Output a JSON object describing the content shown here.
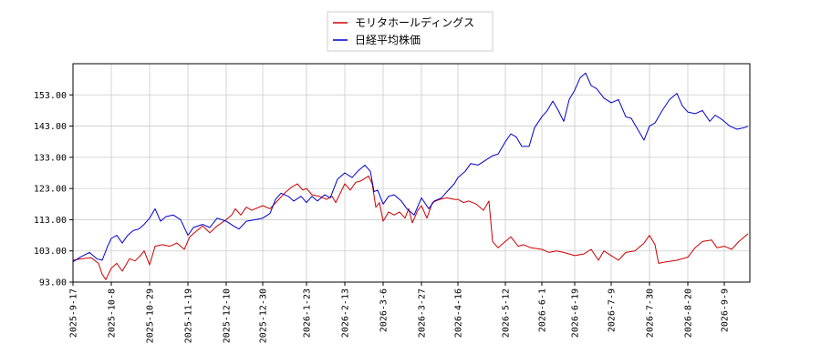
{
  "chart_data": {
    "type": "line",
    "title": "",
    "xlabel": "",
    "ylabel": "",
    "grid": true,
    "legend_placement": "top-center",
    "ylim": [
      93,
      163
    ],
    "y_ticks": [
      93,
      103,
      113,
      123,
      133,
      143,
      153
    ],
    "y_tick_labels": [
      "93.00",
      "103.00",
      "113.00",
      "123.00",
      "133.00",
      "143.00",
      "153.00"
    ],
    "xlim": [
      "2025-09-17",
      "2026-09-23"
    ],
    "x_tick_labels": [
      "2025-9-17",
      "2025-10-8",
      "2025-10-29",
      "2025-11-19",
      "2025-12-10",
      "2025-12-30",
      "2026-1-23",
      "2026-2-13",
      "2026-3-6",
      "2026-3-27",
      "2026-4-16",
      "2026-5-12",
      "2026-6-1",
      "2026-6-19",
      "2026-7-9",
      "2026-7-30",
      "2026-8-20",
      "2026-9-9"
    ],
    "series": [
      {
        "name": "モリタホールディングス",
        "color": "#cc0000",
        "points": [
          [
            "2025-09-17",
            100.0
          ],
          [
            "2025-09-22",
            100.5
          ],
          [
            "2025-09-27",
            100.8
          ],
          [
            "2025-10-01",
            99.0
          ],
          [
            "2025-10-03",
            95.5
          ],
          [
            "2025-10-05",
            93.8
          ],
          [
            "2025-10-08",
            97.5
          ],
          [
            "2025-10-11",
            99.0
          ],
          [
            "2025-10-14",
            96.5
          ],
          [
            "2025-10-18",
            100.5
          ],
          [
            "2025-10-21",
            99.8
          ],
          [
            "2025-10-24",
            101.5
          ],
          [
            "2025-10-26",
            103.0
          ],
          [
            "2025-10-29",
            98.5
          ],
          [
            "2025-11-01",
            104.5
          ],
          [
            "2025-11-05",
            105.0
          ],
          [
            "2025-11-09",
            104.5
          ],
          [
            "2025-11-13",
            105.5
          ],
          [
            "2025-11-17",
            103.5
          ],
          [
            "2025-11-20",
            107.5
          ],
          [
            "2025-11-23",
            109.0
          ],
          [
            "2025-11-27",
            111.0
          ],
          [
            "2025-12-01",
            108.8
          ],
          [
            "2025-12-05",
            111.0
          ],
          [
            "2025-12-10",
            113.0
          ],
          [
            "2025-12-13",
            114.5
          ],
          [
            "2025-12-15",
            116.5
          ],
          [
            "2025-12-18",
            114.5
          ],
          [
            "2025-12-21",
            117.0
          ],
          [
            "2025-12-24",
            116.0
          ],
          [
            "2025-12-30",
            117.5
          ],
          [
            "2026-01-03",
            116.5
          ],
          [
            "2026-01-07",
            119.0
          ],
          [
            "2026-01-11",
            121.5
          ],
          [
            "2026-01-15",
            123.5
          ],
          [
            "2026-01-18",
            124.5
          ],
          [
            "2026-01-21",
            122.5
          ],
          [
            "2026-01-23",
            123.0
          ],
          [
            "2026-01-26",
            121.0
          ],
          [
            "2026-01-30",
            120.5
          ],
          [
            "2026-02-03",
            119.5
          ],
          [
            "2026-02-06",
            120.5
          ],
          [
            "2026-02-08",
            118.5
          ],
          [
            "2026-02-13",
            124.5
          ],
          [
            "2026-02-16",
            122.5
          ],
          [
            "2026-02-19",
            125.0
          ],
          [
            "2026-02-22",
            125.5
          ],
          [
            "2026-02-26",
            127.0
          ],
          [
            "2026-02-28",
            124.5
          ],
          [
            "2026-03-02",
            117.0
          ],
          [
            "2026-03-04",
            118.5
          ],
          [
            "2026-03-06",
            112.5
          ],
          [
            "2026-03-09",
            115.5
          ],
          [
            "2026-03-12",
            114.5
          ],
          [
            "2026-03-15",
            115.5
          ],
          [
            "2026-03-18",
            113.5
          ],
          [
            "2026-03-20",
            116.5
          ],
          [
            "2026-03-22",
            112.0
          ],
          [
            "2026-03-25",
            116.0
          ],
          [
            "2026-03-27",
            117.5
          ],
          [
            "2026-03-30",
            113.5
          ],
          [
            "2026-04-02",
            118.5
          ],
          [
            "2026-04-06",
            119.5
          ],
          [
            "2026-04-10",
            120.0
          ],
          [
            "2026-04-14",
            119.5
          ],
          [
            "2026-04-16",
            119.5
          ],
          [
            "2026-04-19",
            118.5
          ],
          [
            "2026-04-22",
            119.0
          ],
          [
            "2026-04-26",
            118.0
          ],
          [
            "2026-04-30",
            116.0
          ],
          [
            "2026-05-03",
            119.0
          ],
          [
            "2026-05-05",
            106.0
          ],
          [
            "2026-05-08",
            104.0
          ],
          [
            "2026-05-12",
            106.0
          ],
          [
            "2026-05-15",
            107.5
          ],
          [
            "2026-05-19",
            104.5
          ],
          [
            "2026-05-22",
            105.0
          ],
          [
            "2026-05-26",
            104.0
          ],
          [
            "2026-06-01",
            103.5
          ],
          [
            "2026-06-05",
            102.5
          ],
          [
            "2026-06-09",
            103.0
          ],
          [
            "2026-06-13",
            102.5
          ],
          [
            "2026-06-19",
            101.5
          ],
          [
            "2026-06-24",
            102.0
          ],
          [
            "2026-06-28",
            103.5
          ],
          [
            "2026-07-02",
            100.0
          ],
          [
            "2026-07-05",
            103.0
          ],
          [
            "2026-07-09",
            101.5
          ],
          [
            "2026-07-13",
            100.0
          ],
          [
            "2026-07-17",
            102.5
          ],
          [
            "2026-07-22",
            103.0
          ],
          [
            "2026-07-27",
            105.5
          ],
          [
            "2026-07-30",
            108.0
          ],
          [
            "2026-08-02",
            105.0
          ],
          [
            "2026-08-04",
            99.0
          ],
          [
            "2026-08-08",
            99.5
          ],
          [
            "2026-08-14",
            100.0
          ],
          [
            "2026-08-20",
            101.0
          ],
          [
            "2026-08-24",
            104.0
          ],
          [
            "2026-08-28",
            106.0
          ],
          [
            "2026-09-02",
            106.5
          ],
          [
            "2026-09-05",
            104.0
          ],
          [
            "2026-09-09",
            104.5
          ],
          [
            "2026-09-13",
            103.5
          ],
          [
            "2026-09-17",
            106.0
          ],
          [
            "2026-09-22",
            108.5
          ]
        ]
      },
      {
        "name": "日経平均株価",
        "color": "#0000cc",
        "points": [
          [
            "2025-09-17",
            99.5
          ],
          [
            "2025-09-21",
            101.0
          ],
          [
            "2025-09-26",
            102.5
          ],
          [
            "2025-09-30",
            100.5
          ],
          [
            "2025-10-03",
            100.0
          ],
          [
            "2025-10-06",
            104.5
          ],
          [
            "2025-10-08",
            107.0
          ],
          [
            "2025-10-11",
            108.0
          ],
          [
            "2025-10-14",
            105.5
          ],
          [
            "2025-10-17",
            108.0
          ],
          [
            "2025-10-20",
            109.5
          ],
          [
            "2025-10-23",
            110.0
          ],
          [
            "2025-10-26",
            111.5
          ],
          [
            "2025-10-29",
            113.5
          ],
          [
            "2025-11-01",
            116.5
          ],
          [
            "2025-11-04",
            112.5
          ],
          [
            "2025-11-07",
            114.0
          ],
          [
            "2025-11-11",
            114.5
          ],
          [
            "2025-11-15",
            113.0
          ],
          [
            "2025-11-19",
            108.0
          ],
          [
            "2025-11-22",
            110.5
          ],
          [
            "2025-11-27",
            111.5
          ],
          [
            "2025-12-01",
            110.5
          ],
          [
            "2025-12-05",
            113.5
          ],
          [
            "2025-12-10",
            112.5
          ],
          [
            "2025-12-14",
            111.0
          ],
          [
            "2025-12-17",
            110.0
          ],
          [
            "2025-12-21",
            112.5
          ],
          [
            "2025-12-26",
            113.0
          ],
          [
            "2025-12-30",
            113.5
          ],
          [
            "2026-01-03",
            115.0
          ],
          [
            "2026-01-06",
            119.5
          ],
          [
            "2026-01-09",
            121.5
          ],
          [
            "2026-01-13",
            120.5
          ],
          [
            "2026-01-16",
            119.0
          ],
          [
            "2026-01-20",
            120.5
          ],
          [
            "2026-01-23",
            118.5
          ],
          [
            "2026-01-26",
            120.5
          ],
          [
            "2026-01-29",
            119.0
          ],
          [
            "2026-02-02",
            121.0
          ],
          [
            "2026-02-05",
            120.0
          ],
          [
            "2026-02-09",
            126.0
          ],
          [
            "2026-02-13",
            128.0
          ],
          [
            "2026-02-17",
            126.5
          ],
          [
            "2026-02-20",
            128.5
          ],
          [
            "2026-02-24",
            130.5
          ],
          [
            "2026-02-27",
            128.5
          ],
          [
            "2026-03-01",
            122.0
          ],
          [
            "2026-03-03",
            122.5
          ],
          [
            "2026-03-06",
            118.0
          ],
          [
            "2026-03-09",
            120.5
          ],
          [
            "2026-03-12",
            121.0
          ],
          [
            "2026-03-16",
            119.0
          ],
          [
            "2026-03-19",
            116.5
          ],
          [
            "2026-03-23",
            114.5
          ],
          [
            "2026-03-27",
            120.0
          ],
          [
            "2026-03-31",
            116.5
          ],
          [
            "2026-04-03",
            119.0
          ],
          [
            "2026-04-07",
            120.0
          ],
          [
            "2026-04-10",
            122.0
          ],
          [
            "2026-04-14",
            124.5
          ],
          [
            "2026-04-16",
            126.5
          ],
          [
            "2026-04-20",
            128.5
          ],
          [
            "2026-04-23",
            131.0
          ],
          [
            "2026-04-27",
            130.5
          ],
          [
            "2026-05-01",
            132.0
          ],
          [
            "2026-05-05",
            133.5
          ],
          [
            "2026-05-08",
            134.0
          ],
          [
            "2026-05-12",
            138.0
          ],
          [
            "2026-05-15",
            140.5
          ],
          [
            "2026-05-18",
            139.5
          ],
          [
            "2026-05-21",
            136.5
          ],
          [
            "2026-05-25",
            136.5
          ],
          [
            "2026-05-28",
            142.5
          ],
          [
            "2026-06-01",
            146.0
          ],
          [
            "2026-06-04",
            148.0
          ],
          [
            "2026-06-07",
            151.0
          ],
          [
            "2026-06-10",
            148.0
          ],
          [
            "2026-06-13",
            144.5
          ],
          [
            "2026-06-16",
            151.5
          ],
          [
            "2026-06-19",
            154.5
          ],
          [
            "2026-06-22",
            158.5
          ],
          [
            "2026-06-25",
            160.0
          ],
          [
            "2026-06-28",
            156.0
          ],
          [
            "2026-07-01",
            155.0
          ],
          [
            "2026-07-05",
            152.0
          ],
          [
            "2026-07-09",
            150.5
          ],
          [
            "2026-07-13",
            151.5
          ],
          [
            "2026-07-17",
            146.0
          ],
          [
            "2026-07-20",
            145.5
          ],
          [
            "2026-07-24",
            141.5
          ],
          [
            "2026-07-27",
            138.5
          ],
          [
            "2026-07-30",
            143.0
          ],
          [
            "2026-08-02",
            144.0
          ],
          [
            "2026-08-06",
            148.0
          ],
          [
            "2026-08-10",
            151.5
          ],
          [
            "2026-08-14",
            153.5
          ],
          [
            "2026-08-17",
            149.5
          ],
          [
            "2026-08-20",
            147.5
          ],
          [
            "2026-08-24",
            147.0
          ],
          [
            "2026-08-28",
            148.0
          ],
          [
            "2026-09-01",
            144.5
          ],
          [
            "2026-09-04",
            146.5
          ],
          [
            "2026-09-08",
            145.0
          ],
          [
            "2026-09-12",
            143.0
          ],
          [
            "2026-09-16",
            142.0
          ],
          [
            "2026-09-20",
            142.5
          ],
          [
            "2026-09-22",
            143.0
          ]
        ]
      }
    ]
  }
}
